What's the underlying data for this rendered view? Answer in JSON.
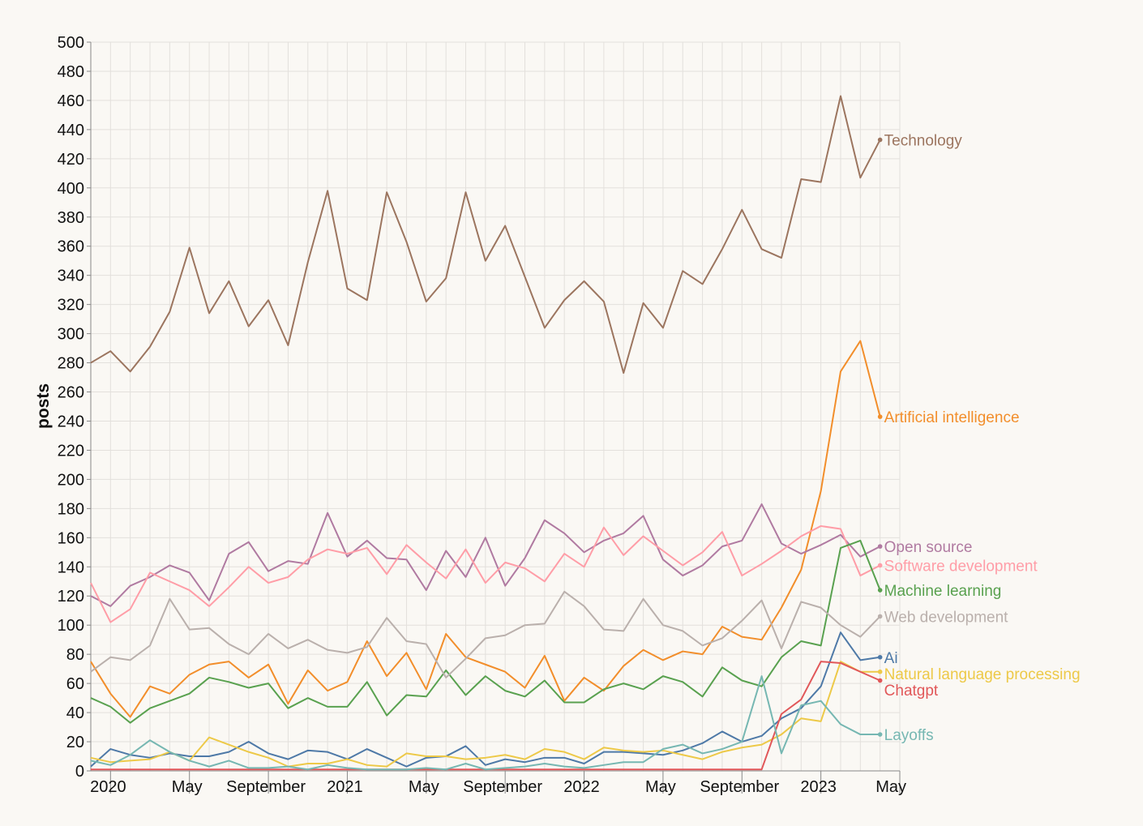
{
  "chart_data": {
    "type": "line",
    "ylabel": "posts",
    "xlabel": "",
    "ylim": [
      0,
      500
    ],
    "y_tick_step": 20,
    "x_start": "2020-01",
    "x_end": "2023-05",
    "x_tick_labels": [
      {
        "month": "2020-01",
        "label": "2020"
      },
      {
        "month": "2020-05",
        "label": "May"
      },
      {
        "month": "2020-09",
        "label": "September"
      },
      {
        "month": "2021-01",
        "label": "2021"
      },
      {
        "month": "2021-05",
        "label": "May"
      },
      {
        "month": "2021-09",
        "label": "September"
      },
      {
        "month": "2022-01",
        "label": "2022"
      },
      {
        "month": "2022-05",
        "label": "May"
      },
      {
        "month": "2022-09",
        "label": "September"
      },
      {
        "month": "2023-01",
        "label": "2023"
      },
      {
        "month": "2023-05",
        "label": "May"
      }
    ],
    "grid": true,
    "legend": "labels at line ends (right)",
    "series": [
      {
        "name": "Technology",
        "color": "#9c755f",
        "start": "2019-12",
        "values": [
          280,
          288,
          274,
          291,
          315,
          359,
          314,
          336,
          305,
          323,
          292,
          349,
          398,
          331,
          323,
          397,
          363,
          322,
          338,
          397,
          350,
          374,
          339,
          304,
          323,
          336,
          322,
          273,
          321,
          304,
          343,
          334,
          358,
          385,
          358,
          352,
          406,
          404,
          463,
          407,
          433
        ]
      },
      {
        "name": "Artificial intelligence",
        "color": "#f28e2b",
        "start": "2019-12",
        "values": [
          75,
          53,
          37,
          58,
          53,
          66,
          73,
          75,
          64,
          73,
          46,
          69,
          55,
          61,
          89,
          65,
          81,
          56,
          94,
          78,
          73,
          68,
          57,
          79,
          48,
          64,
          55,
          72,
          83,
          76,
          82,
          80,
          99,
          92,
          90,
          112,
          138,
          192,
          274,
          295,
          243
        ]
      },
      {
        "name": "Open source",
        "color": "#b07aa1",
        "start": "2019-12",
        "values": [
          120,
          113,
          127,
          133,
          141,
          136,
          117,
          149,
          157,
          137,
          144,
          142,
          177,
          147,
          158,
          146,
          145,
          124,
          151,
          133,
          160,
          127,
          146,
          172,
          163,
          150,
          158,
          163,
          175,
          145,
          134,
          141,
          154,
          158,
          183,
          156,
          149,
          155,
          162,
          147,
          154
        ]
      },
      {
        "name": "Software development",
        "color": "#ff9da7",
        "start": "2019-12",
        "values": [
          129,
          102,
          111,
          136,
          130,
          124,
          113,
          126,
          140,
          129,
          133,
          145,
          152,
          149,
          153,
          135,
          155,
          143,
          132,
          152,
          129,
          143,
          139,
          130,
          149,
          140,
          167,
          148,
          161,
          151,
          141,
          150,
          164,
          134,
          142,
          151,
          161,
          168,
          166,
          134,
          141
        ]
      },
      {
        "name": "Machine learning",
        "color": "#59a14f",
        "start": "2019-12",
        "values": [
          50,
          44,
          33,
          43,
          48,
          53,
          64,
          61,
          57,
          60,
          43,
          50,
          44,
          44,
          61,
          38,
          52,
          51,
          69,
          52,
          65,
          55,
          51,
          62,
          47,
          47,
          56,
          60,
          56,
          65,
          61,
          51,
          71,
          62,
          58,
          78,
          89,
          86,
          153,
          158,
          124
        ]
      },
      {
        "name": "Web development",
        "color": "#bab0ac",
        "start": "2019-12",
        "values": [
          68,
          78,
          76,
          86,
          118,
          97,
          98,
          87,
          80,
          94,
          84,
          90,
          83,
          81,
          85,
          105,
          89,
          87,
          64,
          77,
          91,
          93,
          100,
          101,
          123,
          113,
          97,
          96,
          118,
          100,
          96,
          86,
          91,
          103,
          117,
          84,
          116,
          112,
          100,
          92,
          106
        ]
      },
      {
        "name": "Ai",
        "color": "#4e79a7",
        "start": "2019-12",
        "values": [
          3,
          15,
          11,
          9,
          12,
          10,
          10,
          13,
          20,
          12,
          8,
          14,
          13,
          8,
          15,
          9,
          3,
          9,
          10,
          17,
          4,
          8,
          6,
          9,
          9,
          5,
          13,
          13,
          12,
          11,
          14,
          19,
          27,
          20,
          24,
          36,
          43,
          58,
          95,
          76,
          78
        ]
      },
      {
        "name": "Natural language processing",
        "color": "#edc948",
        "start": "2019-12",
        "values": [
          9,
          6,
          7,
          8,
          13,
          7,
          23,
          18,
          13,
          9,
          3,
          5,
          5,
          8,
          4,
          3,
          12,
          10,
          10,
          8,
          9,
          11,
          8,
          15,
          13,
          8,
          16,
          14,
          13,
          14,
          11,
          8,
          13,
          16,
          18,
          25,
          36,
          34,
          75,
          68,
          68
        ]
      },
      {
        "name": "Chatgpt",
        "color": "#e15759",
        "start": "2019-12",
        "values": [
          1,
          1,
          1,
          1,
          1,
          1,
          1,
          1,
          1,
          1,
          1,
          1,
          1,
          1,
          1,
          1,
          1,
          1,
          1,
          1,
          1,
          1,
          1,
          1,
          1,
          1,
          1,
          1,
          1,
          1,
          1,
          1,
          1,
          1,
          1,
          39,
          49,
          75,
          74,
          68,
          62
        ]
      },
      {
        "name": "Layoffs",
        "color": "#76b7b2",
        "start": "2019-12",
        "values": [
          7,
          4,
          11,
          21,
          13,
          7,
          3,
          7,
          2,
          2,
          3,
          1,
          4,
          2,
          1,
          1,
          1,
          2,
          1,
          5,
          1,
          2,
          3,
          5,
          3,
          2,
          4,
          6,
          6,
          15,
          18,
          12,
          15,
          20,
          65,
          12,
          45,
          48,
          32,
          25,
          25
        ]
      }
    ]
  }
}
